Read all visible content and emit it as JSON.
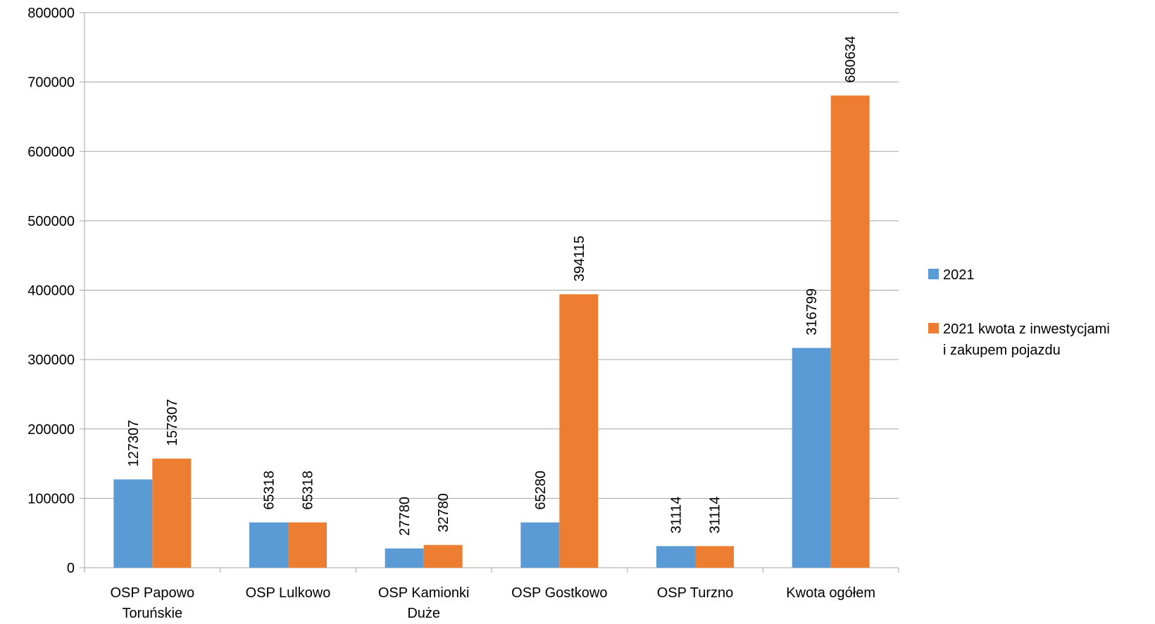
{
  "chart_data": {
    "type": "bar",
    "categories": [
      [
        "OSP Papowo",
        "Toruńskie"
      ],
      [
        "OSP Lulkowo"
      ],
      [
        "OSP Kamionki",
        "Duże"
      ],
      [
        "OSP Gostkowo"
      ],
      [
        "OSP Turzno"
      ],
      [
        "Kwota ogółem"
      ]
    ],
    "series": [
      {
        "name": "2021",
        "color": "#5b9bd5",
        "values": [
          127307,
          65318,
          27780,
          65280,
          31114,
          316799
        ]
      },
      {
        "name_lines": [
          "2021 kwota z inwestycjami",
          "i zakupem pojazdu"
        ],
        "color": "#ed7d31",
        "values": [
          157307,
          65318,
          32780,
          394115,
          31114,
          680634
        ]
      }
    ],
    "ylim": [
      0,
      800000
    ],
    "yticks": [
      "0",
      "100000",
      "200000",
      "300000",
      "400000",
      "500000",
      "600000",
      "700000",
      "800000"
    ],
    "grid": true,
    "legend_position": "right",
    "title": "",
    "xlabel": "",
    "ylabel": ""
  }
}
